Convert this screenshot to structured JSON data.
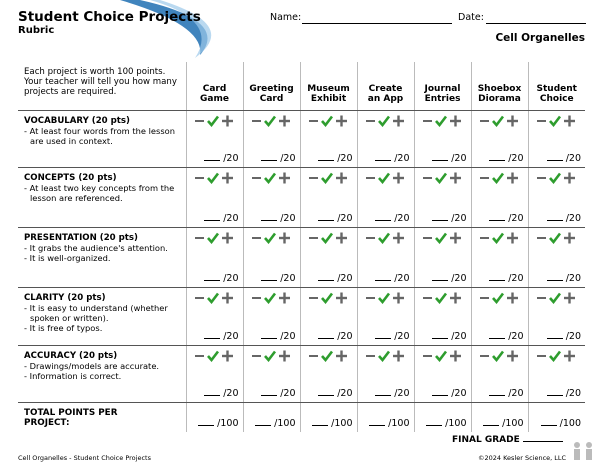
{
  "header": {
    "title": "Student Choice Projects",
    "subtitle": "Rubric",
    "name_label": "Name:",
    "date_label": "Date:",
    "topic": "Cell Organelles"
  },
  "intro": "Each project is worth 100 points. Your teacher will tell you how many projects are required.",
  "columns": [
    "Card\nGame",
    "Greeting\nCard",
    "Museum\nExhibit",
    "Create\nan App",
    "Journal\nEntries",
    "Shoebox\nDiorama",
    "Student\nChoice"
  ],
  "criteria": [
    {
      "title": "VOCABULARY (20 pts)",
      "items": [
        "- At least four words from the lesson are used in context."
      ]
    },
    {
      "title": "CONCEPTS (20 pts)",
      "items": [
        "- At least two key concepts from the lesson are referenced."
      ]
    },
    {
      "title": "PRESENTATION (20 pts)",
      "items": [
        "- It grabs the audience's attention.",
        "- It is well-organized."
      ]
    },
    {
      "title": "CLARITY (20 pts)",
      "items": [
        "- It is easy to understand (whether spoken or written).",
        "- It is free of typos."
      ]
    },
    {
      "title": "ACCURACY (20 pts)",
      "items": [
        "- Drawings/models are accurate.",
        "- Information is correct."
      ]
    }
  ],
  "score_label": "/20",
  "total": {
    "label": "TOTAL POINTS PER PROJECT:",
    "score_label": "/100"
  },
  "final_grade": "FINAL GRADE",
  "footer": {
    "left": "Cell Organelles - Student Choice Projects",
    "right": "©2024 Kesler Science, LLC"
  }
}
